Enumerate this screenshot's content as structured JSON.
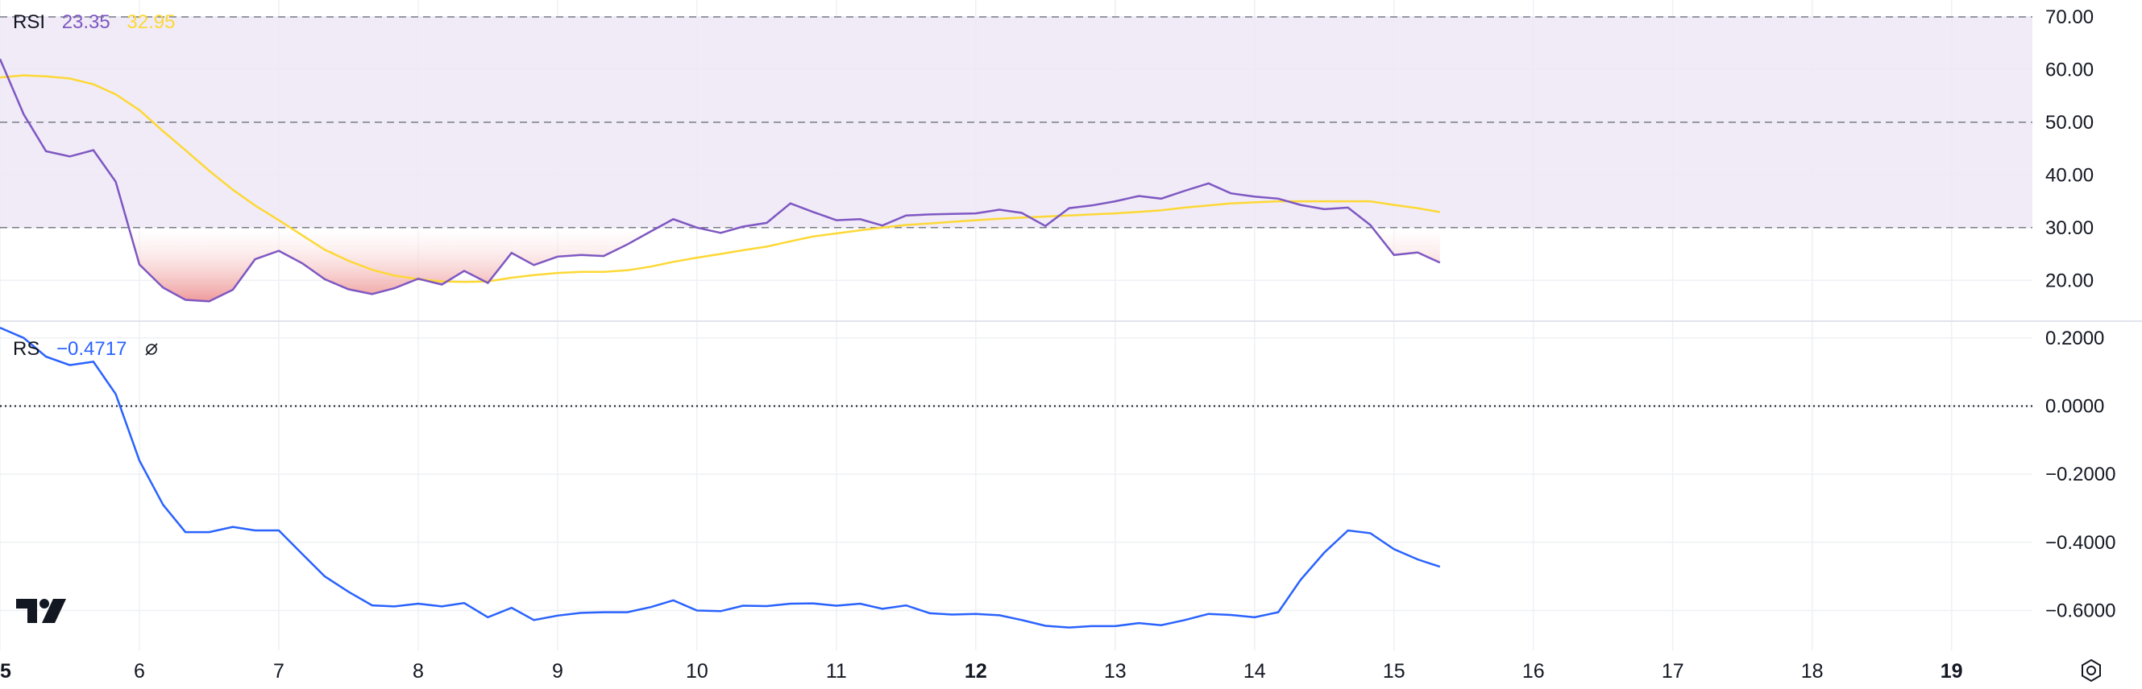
{
  "colors": {
    "rsi_line": "#7e57c2",
    "rsi_ma": "#fdd835",
    "band_fill": "#ede7f6",
    "oversold_fill": "#ef9a9a",
    "rs_line": "#2962ff",
    "grid": "#eef0f3",
    "dash": "#787b86",
    "text": "#131722"
  },
  "rsi_pane": {
    "label": "RSI",
    "value": "23.35",
    "ma_value": "32.95",
    "y_ticks": [
      "70.00",
      "60.00",
      "50.00",
      "40.00",
      "30.00",
      "20.00"
    ],
    "y_tick_values": [
      70,
      60,
      50,
      40,
      30,
      20
    ],
    "upper_band": 70,
    "middle_band": 50,
    "lower_band": 30
  },
  "rs_pane": {
    "label": "RS",
    "value": "−0.4717",
    "visibility_icon": "eye-crossed-icon",
    "y_ticks": [
      "0.2000",
      "0.0000",
      "−0.2000",
      "−0.4000",
      "−0.6000"
    ],
    "y_tick_values": [
      0.2,
      0.0,
      -0.2,
      -0.4,
      -0.6
    ],
    "zero_line": 0
  },
  "x_axis": {
    "ticks": [
      {
        "label": "5",
        "value": 5,
        "bold": true
      },
      {
        "label": "6",
        "value": 6,
        "bold": false
      },
      {
        "label": "7",
        "value": 7,
        "bold": false
      },
      {
        "label": "8",
        "value": 8,
        "bold": false
      },
      {
        "label": "9",
        "value": 9,
        "bold": false
      },
      {
        "label": "10",
        "value": 10,
        "bold": false
      },
      {
        "label": "11",
        "value": 11,
        "bold": false
      },
      {
        "label": "12",
        "value": 12,
        "bold": true
      },
      {
        "label": "13",
        "value": 13,
        "bold": false
      },
      {
        "label": "14",
        "value": 14,
        "bold": false
      },
      {
        "label": "15",
        "value": 15,
        "bold": false
      },
      {
        "label": "16",
        "value": 16,
        "bold": false
      },
      {
        "label": "17",
        "value": 17,
        "bold": false
      },
      {
        "label": "18",
        "value": 18,
        "bold": false
      },
      {
        "label": "19",
        "value": 19,
        "bold": true
      }
    ]
  },
  "chart_data": [
    {
      "type": "line",
      "x_range": [
        5.0,
        19.58
      ],
      "ylim": [
        12.4,
        73.2
      ],
      "grid": true,
      "series": [
        {
          "name": "RSI",
          "x": [
            5.0,
            5.17,
            5.33,
            5.5,
            5.67,
            5.83,
            6.0,
            6.17,
            6.33,
            6.5,
            6.67,
            6.83,
            7.0,
            7.17,
            7.33,
            7.5,
            7.67,
            7.83,
            8.0,
            8.17,
            8.33,
            8.5,
            8.67,
            8.83,
            9.0,
            9.17,
            9.33,
            9.5,
            9.67,
            9.83,
            10.0,
            10.17,
            10.33,
            10.5,
            10.67,
            10.83,
            11.0,
            11.17,
            11.33,
            11.5,
            11.67,
            11.83,
            12.0,
            12.17,
            12.33,
            12.5,
            12.67,
            12.83,
            13.0,
            13.17,
            13.33,
            13.5,
            13.67,
            13.83,
            14.0,
            14.17,
            14.33,
            14.5,
            14.67,
            14.83,
            15.0,
            15.17,
            15.33
          ],
          "values": [
            62.0,
            51.5,
            44.5,
            43.5,
            44.7,
            38.7,
            23.0,
            18.6,
            16.3,
            16.0,
            18.2,
            24.0,
            25.6,
            23.2,
            20.2,
            18.3,
            17.4,
            18.5,
            20.3,
            19.2,
            21.8,
            19.5,
            25.2,
            22.9,
            24.5,
            24.8,
            24.6,
            26.8,
            29.3,
            31.6,
            30.0,
            29.0,
            30.2,
            30.9,
            34.6,
            33.0,
            31.4,
            31.6,
            30.4,
            32.3,
            32.5,
            32.6,
            32.7,
            33.4,
            32.8,
            30.3,
            33.7,
            34.2,
            35.0,
            36.0,
            35.5,
            37.0,
            38.4,
            36.5,
            35.9,
            35.5,
            34.3,
            33.5,
            33.8,
            30.5,
            24.8,
            25.3,
            23.35
          ]
        },
        {
          "name": "RSI MA",
          "x": [
            5.0,
            5.17,
            5.33,
            5.5,
            5.67,
            5.83,
            6.0,
            6.17,
            6.33,
            6.5,
            6.67,
            6.83,
            7.0,
            7.17,
            7.33,
            7.5,
            7.67,
            7.83,
            8.0,
            8.17,
            8.33,
            8.5,
            8.67,
            8.83,
            9.0,
            9.17,
            9.33,
            9.5,
            9.67,
            9.83,
            10.0,
            10.17,
            10.33,
            10.5,
            10.67,
            10.83,
            11.0,
            11.17,
            11.33,
            11.5,
            11.67,
            11.83,
            12.0,
            12.17,
            12.33,
            12.5,
            12.67,
            12.83,
            13.0,
            13.17,
            13.33,
            13.5,
            13.67,
            13.83,
            14.0,
            14.17,
            14.33,
            14.5,
            14.67,
            14.83,
            15.0,
            15.17,
            15.33
          ],
          "values": [
            58.5,
            58.9,
            58.7,
            58.3,
            57.2,
            55.3,
            52.3,
            48.3,
            44.7,
            40.8,
            37.2,
            34.2,
            31.4,
            28.5,
            25.8,
            23.7,
            22.0,
            20.9,
            20.2,
            19.8,
            19.7,
            19.8,
            20.5,
            21.0,
            21.4,
            21.6,
            21.6,
            21.9,
            22.6,
            23.5,
            24.3,
            25.0,
            25.7,
            26.4,
            27.4,
            28.3,
            28.9,
            29.5,
            30.0,
            30.5,
            30.8,
            31.1,
            31.4,
            31.7,
            31.9,
            32.1,
            32.3,
            32.5,
            32.7,
            33.0,
            33.3,
            33.8,
            34.2,
            34.6,
            34.8,
            35.0,
            35.0,
            35.0,
            35.0,
            35.0,
            34.3,
            33.7,
            32.95
          ]
        }
      ]
    },
    {
      "type": "line",
      "x_range": [
        5.0,
        19.58
      ],
      "ylim": [
        -0.717,
        0.2467
      ],
      "grid": true,
      "series": [
        {
          "name": "RS",
          "x": [
            5.0,
            5.17,
            5.33,
            5.5,
            5.67,
            5.83,
            6.0,
            6.17,
            6.33,
            6.5,
            6.67,
            6.83,
            7.0,
            7.17,
            7.33,
            7.5,
            7.67,
            7.83,
            8.0,
            8.17,
            8.33,
            8.5,
            8.67,
            8.83,
            9.0,
            9.17,
            9.33,
            9.5,
            9.67,
            9.83,
            10.0,
            10.17,
            10.33,
            10.5,
            10.67,
            10.83,
            11.0,
            11.17,
            11.33,
            11.5,
            11.67,
            11.83,
            12.0,
            12.17,
            12.33,
            12.5,
            12.67,
            12.83,
            13.0,
            13.17,
            13.33,
            13.5,
            13.67,
            13.83,
            14.0,
            14.17,
            14.33,
            14.5,
            14.67,
            14.83,
            15.0,
            15.17,
            15.33
          ],
          "values": [
            0.23,
            0.2,
            0.145,
            0.12,
            0.13,
            0.035,
            -0.16,
            -0.29,
            -0.37,
            -0.37,
            -0.355,
            -0.365,
            -0.365,
            -0.435,
            -0.5,
            -0.545,
            -0.585,
            -0.588,
            -0.58,
            -0.588,
            -0.578,
            -0.62,
            -0.592,
            -0.628,
            -0.615,
            -0.607,
            -0.605,
            -0.605,
            -0.59,
            -0.57,
            -0.6,
            -0.602,
            -0.586,
            -0.587,
            -0.58,
            -0.579,
            -0.586,
            -0.58,
            -0.595,
            -0.585,
            -0.608,
            -0.612,
            -0.61,
            -0.614,
            -0.628,
            -0.645,
            -0.65,
            -0.646,
            -0.646,
            -0.637,
            -0.643,
            -0.628,
            -0.61,
            -0.613,
            -0.62,
            -0.605,
            -0.51,
            -0.43,
            -0.365,
            -0.373,
            -0.42,
            -0.45,
            -0.4717
          ]
        }
      ]
    }
  ]
}
